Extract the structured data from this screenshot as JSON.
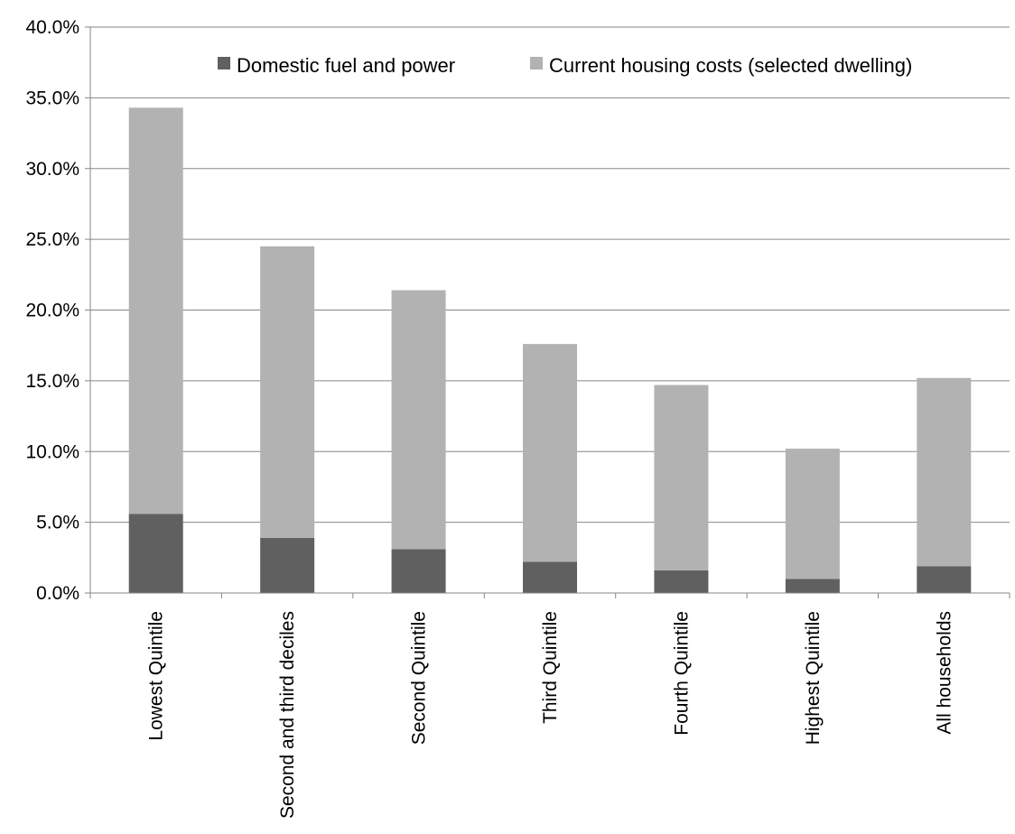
{
  "chart_data": {
    "type": "bar",
    "stacked": true,
    "categories": [
      "Lowest Quintile",
      "Second and third deciles",
      "Second Quintile",
      "Third Quintile",
      "Fourth Quintile",
      "Highest Quintile",
      "All households"
    ],
    "series": [
      {
        "name": "Domestic fuel and power",
        "color": "#606060",
        "values": [
          5.6,
          3.9,
          3.1,
          2.2,
          1.6,
          1.0,
          1.9
        ]
      },
      {
        "name": "Current housing costs (selected dwelling)",
        "color": "#b2b2b2",
        "values": [
          28.7,
          20.6,
          18.3,
          15.4,
          13.1,
          9.2,
          13.3
        ]
      }
    ],
    "y_ticks": [
      "0.0%",
      "5.0%",
      "10.0%",
      "15.0%",
      "20.0%",
      "25.0%",
      "30.0%",
      "35.0%",
      "40.0%"
    ],
    "ylim": [
      0,
      40
    ],
    "y_unit": "percent",
    "grid": "horizontal",
    "legend_position": "top-center",
    "title": "",
    "xlabel": "",
    "ylabel": ""
  }
}
